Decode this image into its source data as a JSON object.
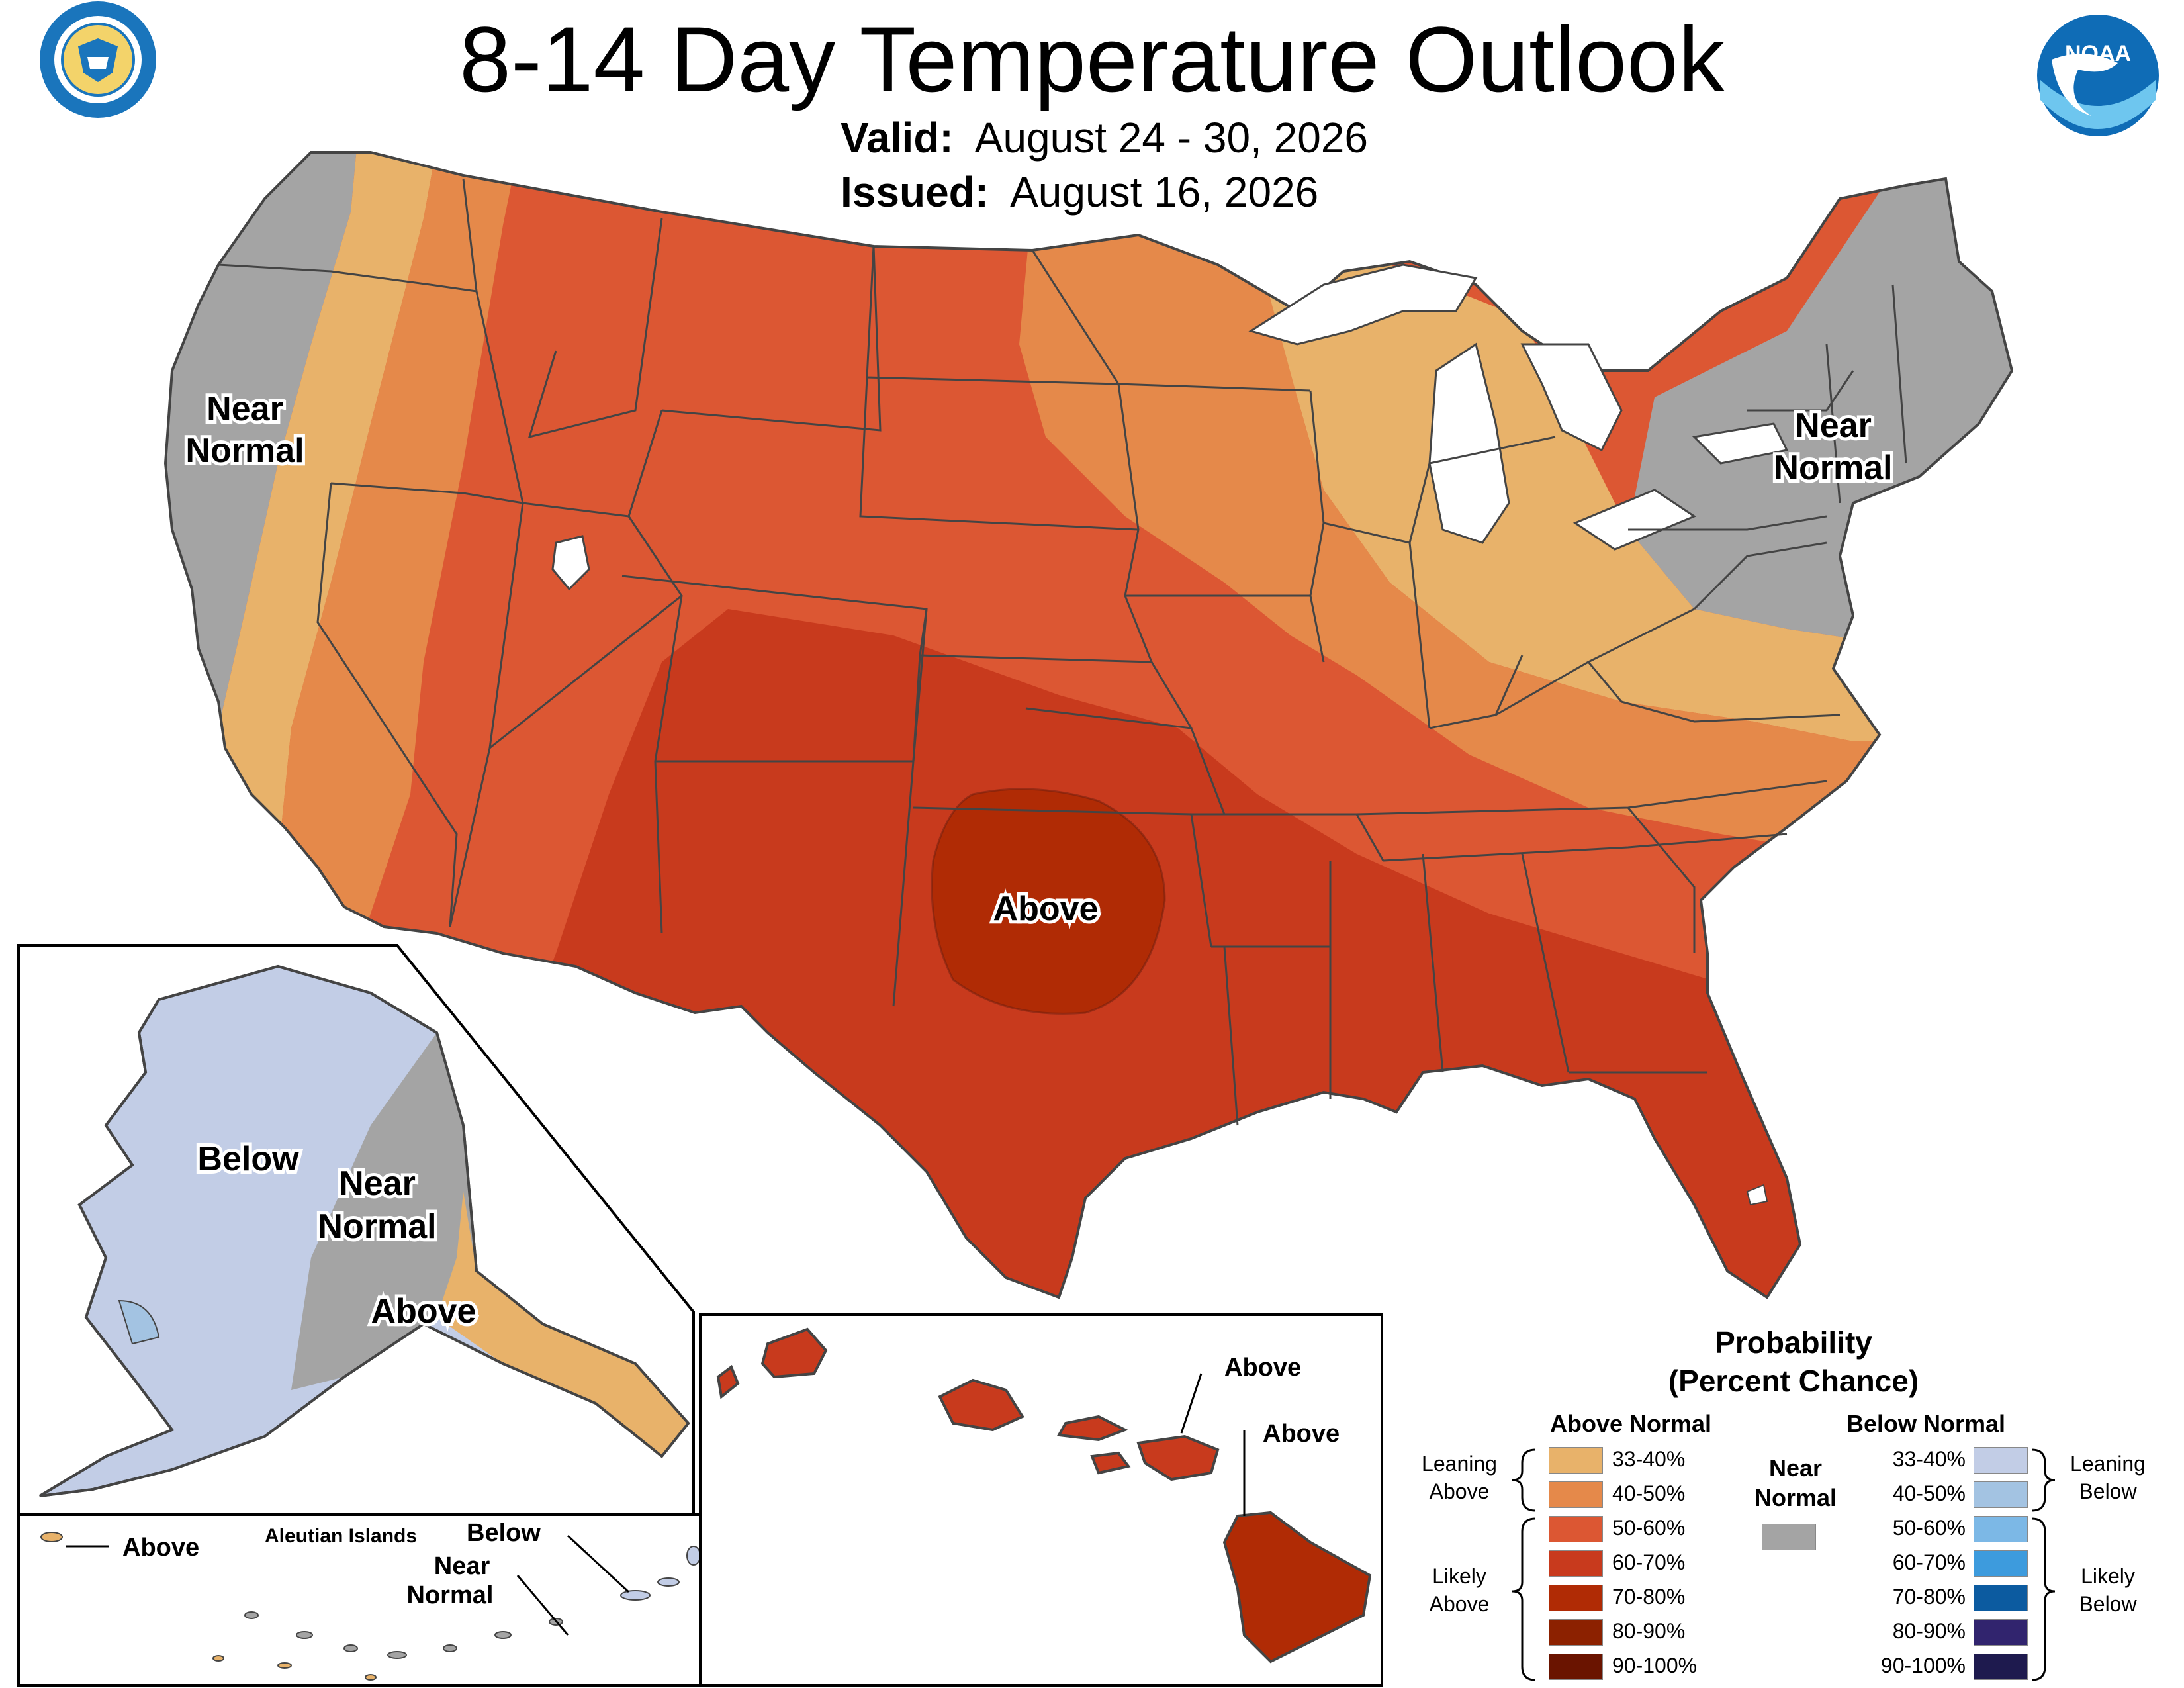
{
  "header": {
    "title": "8-14 Day Temperature Outlook",
    "valid_label": "Valid:",
    "valid_value": "August 24 - 30, 2026",
    "issued_label": "Issued:",
    "issued_value": "August 16, 2026"
  },
  "logos": {
    "commerce": {
      "icon": "department-of-commerce-seal",
      "text": "DEPARTMENT OF COMMERCE · UNITED STATES OF AMERICA"
    },
    "noaa": {
      "icon": "noaa-logo",
      "text": "NOAA"
    }
  },
  "map_labels": {
    "west_coast": [
      "Near",
      "Normal"
    ],
    "northeast": [
      "Near",
      "Normal"
    ],
    "south_plains": "Above"
  },
  "alaska_labels": {
    "below": "Below",
    "near": [
      "Near",
      "Normal"
    ],
    "above": "Above"
  },
  "aleutian_labels": {
    "title": "Aleutian Islands",
    "above": "Above",
    "below": "Below",
    "near": [
      "Near",
      "Normal"
    ]
  },
  "hawaii_labels": {
    "above_1": "Above",
    "above_2": "Above"
  },
  "legend": {
    "title_line1": "Probability",
    "title_line2": "(Percent Chance)",
    "above_header": "Above Normal",
    "below_header": "Below Normal",
    "near_header": [
      "Near",
      "Normal"
    ],
    "leaning_above": [
      "Leaning",
      "Above"
    ],
    "likely_above": [
      "Likely",
      "Above"
    ],
    "leaning_below": [
      "Leaning",
      "Below"
    ],
    "likely_below": [
      "Likely",
      "Below"
    ],
    "above_rows": [
      {
        "label": "33-40%",
        "color": "#E8B26A"
      },
      {
        "label": "40-50%",
        "color": "#E5894A"
      },
      {
        "label": "50-60%",
        "color": "#DC5733"
      },
      {
        "label": "60-70%",
        "color": "#C83A1D"
      },
      {
        "label": "70-80%",
        "color": "#B02B05"
      },
      {
        "label": "80-90%",
        "color": "#8C2100"
      },
      {
        "label": "90-100%",
        "color": "#6A1400"
      }
    ],
    "below_rows": [
      {
        "label": "33-40%",
        "color": "#C2CDE6"
      },
      {
        "label": "40-50%",
        "color": "#A3C3E2"
      },
      {
        "label": "50-60%",
        "color": "#7CB8E6"
      },
      {
        "label": "60-70%",
        "color": "#3D9BDD"
      },
      {
        "label": "70-80%",
        "color": "#0C5BA0"
      },
      {
        "label": "80-90%",
        "color": "#31246E"
      },
      {
        "label": "90-100%",
        "color": "#1E1A4E"
      }
    ],
    "near_color": "#A4A4A4"
  }
}
